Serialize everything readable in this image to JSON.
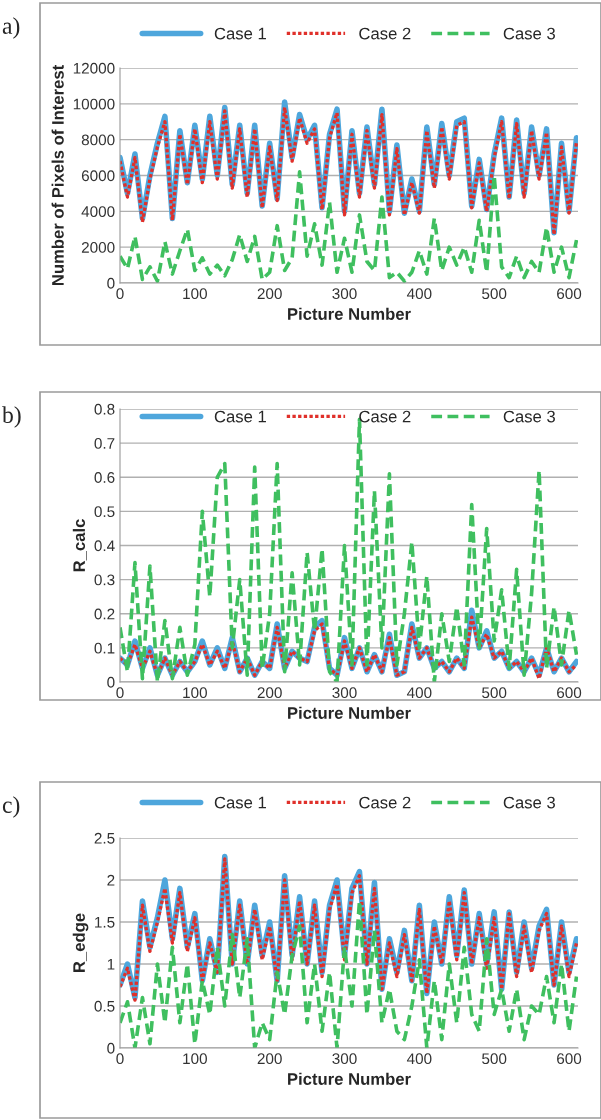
{
  "chart_data": [
    {
      "type": "line",
      "annotations": [
        "a)"
      ],
      "xlabel": "Picture Number",
      "ylabel": "Number of Pixels of Interest",
      "x": [
        0,
        10,
        20,
        30,
        40,
        50,
        60,
        70,
        80,
        90,
        100,
        110,
        120,
        130,
        140,
        150,
        160,
        170,
        180,
        190,
        200,
        210,
        220,
        230,
        240,
        250,
        260,
        270,
        280,
        290,
        300,
        310,
        320,
        330,
        340,
        350,
        360,
        370,
        380,
        390,
        400,
        410,
        420,
        430,
        440,
        450,
        460,
        470,
        480,
        490,
        500,
        510,
        520,
        530,
        540,
        550,
        560,
        570,
        580,
        590,
        600,
        610
      ],
      "xlim": [
        0,
        612
      ],
      "xticks": [
        0,
        100,
        200,
        300,
        400,
        500,
        600
      ],
      "ylim": [
        0,
        12000
      ],
      "yticks": [
        0,
        2000,
        4000,
        6000,
        8000,
        10000,
        12000
      ],
      "grid": "y",
      "legend": "top",
      "marker": "none",
      "series": [
        {
          "name": "Case 1",
          "color": "#4ea6dc",
          "line_style": "solid",
          "values": [
            7000,
            5000,
            7200,
            3600,
            6000,
            7800,
            9300,
            3600,
            8500,
            5600,
            8800,
            5800,
            9300,
            6000,
            9800,
            5500,
            8800,
            5000,
            8800,
            4300,
            7800,
            4700,
            10100,
            7000,
            9400,
            8000,
            8800,
            4200,
            8300,
            9700,
            4000,
            8500,
            5000,
            8700,
            5500,
            9700,
            4000,
            7700,
            3900,
            5800,
            4000,
            8700,
            5500,
            8900,
            6000,
            9000,
            9200,
            4300,
            6900,
            4100,
            7200,
            9200,
            4800,
            9100,
            5000,
            8700,
            6000,
            8600,
            2800,
            7800,
            4000,
            8100
          ]
        },
        {
          "name": "Case 2",
          "color": "#e0302a",
          "line_style": "dotted",
          "values": [
            6800,
            4800,
            7000,
            3400,
            5800,
            7600,
            9000,
            3500,
            8300,
            5500,
            8600,
            5600,
            9000,
            5800,
            9600,
            5300,
            8600,
            4800,
            8600,
            4200,
            7600,
            4600,
            9800,
            6800,
            9200,
            7800,
            8600,
            4100,
            8100,
            9500,
            3800,
            8300,
            4800,
            8500,
            5300,
            9400,
            3800,
            7500,
            3800,
            5600,
            3900,
            8500,
            5300,
            8700,
            5800,
            8800,
            9000,
            4200,
            6700,
            4000,
            7000,
            9000,
            4700,
            8900,
            4800,
            8500,
            5800,
            8400,
            2700,
            7600,
            3900,
            7900
          ]
        },
        {
          "name": "Case 3",
          "color": "#3fbf5f",
          "line_style": "dashed",
          "values": [
            1500,
            800,
            2600,
            200,
            900,
            100,
            2300,
            500,
            1800,
            3000,
            700,
            1400,
            500,
            1000,
            400,
            1300,
            2700,
            1200,
            2600,
            200,
            600,
            3200,
            700,
            1400,
            6200,
            1500,
            3300,
            1000,
            4500,
            600,
            2500,
            600,
            3800,
            1200,
            700,
            4800,
            300,
            600,
            100,
            600,
            1800,
            500,
            3600,
            700,
            2000,
            1000,
            2000,
            600,
            3500,
            600,
            6000,
            900,
            300,
            1500,
            300,
            1200,
            600,
            3100,
            600,
            2000,
            300,
            2400
          ]
        }
      ]
    },
    {
      "type": "line",
      "annotations": [
        "b)"
      ],
      "xlabel": "Picture Number",
      "ylabel": "R_calc",
      "x": [
        0,
        10,
        20,
        30,
        40,
        50,
        60,
        70,
        80,
        90,
        100,
        110,
        120,
        130,
        140,
        150,
        160,
        170,
        180,
        190,
        200,
        210,
        220,
        230,
        240,
        250,
        260,
        270,
        280,
        290,
        300,
        310,
        320,
        330,
        340,
        350,
        360,
        370,
        380,
        390,
        400,
        410,
        420,
        430,
        440,
        450,
        460,
        470,
        480,
        490,
        500,
        510,
        520,
        530,
        540,
        550,
        560,
        570,
        580,
        590,
        600,
        610
      ],
      "xlim": [
        0,
        612
      ],
      "xticks": [
        0,
        100,
        200,
        300,
        400,
        500,
        600
      ],
      "ylim": [
        0,
        0.8
      ],
      "yticks": [
        0,
        0.1,
        0.2,
        0.3,
        0.4,
        0.5,
        0.6,
        0.7,
        0.8
      ],
      "grid": "y",
      "legend": "top",
      "marker": "none",
      "series": [
        {
          "name": "Case 1",
          "color": "#4ea6dc",
          "line_style": "solid",
          "values": [
            0.07,
            0.05,
            0.12,
            0.04,
            0.1,
            0.02,
            0.07,
            0.02,
            0.06,
            0.03,
            0.06,
            0.12,
            0.05,
            0.1,
            0.04,
            0.13,
            0.03,
            0.07,
            0.02,
            0.06,
            0.04,
            0.17,
            0.04,
            0.09,
            0.07,
            0.06,
            0.16,
            0.18,
            0.04,
            0.02,
            0.13,
            0.04,
            0.1,
            0.03,
            0.08,
            0.03,
            0.14,
            0.02,
            0.03,
            0.17,
            0.07,
            0.1,
            0.04,
            0.06,
            0.03,
            0.07,
            0.04,
            0.21,
            0.1,
            0.15,
            0.07,
            0.09,
            0.04,
            0.06,
            0.03,
            0.07,
            0.02,
            0.1,
            0.03,
            0.07,
            0.03,
            0.06
          ]
        },
        {
          "name": "Case 2",
          "color": "#e0302a",
          "line_style": "dotted",
          "values": [
            0.07,
            0.05,
            0.11,
            0.04,
            0.09,
            0.02,
            0.07,
            0.02,
            0.06,
            0.03,
            0.06,
            0.11,
            0.05,
            0.09,
            0.04,
            0.12,
            0.03,
            0.07,
            0.02,
            0.06,
            0.04,
            0.16,
            0.04,
            0.09,
            0.07,
            0.06,
            0.15,
            0.17,
            0.04,
            0.02,
            0.12,
            0.04,
            0.1,
            0.03,
            0.08,
            0.03,
            0.13,
            0.02,
            0.03,
            0.16,
            0.07,
            0.1,
            0.04,
            0.06,
            0.03,
            0.07,
            0.04,
            0.19,
            0.1,
            0.14,
            0.07,
            0.09,
            0.04,
            0.06,
            0.03,
            0.07,
            0.01,
            0.1,
            0.03,
            0.07,
            0.03,
            0.05
          ]
        },
        {
          "name": "Case 3",
          "color": "#3fbf5f",
          "line_style": "dashed",
          "values": [
            0.16,
            0.03,
            0.35,
            0.01,
            0.34,
            0.0,
            0.18,
            0.01,
            0.16,
            0.02,
            0.11,
            0.5,
            0.25,
            0.6,
            0.64,
            0.1,
            0.3,
            0.02,
            0.63,
            0.04,
            0.2,
            0.64,
            0.03,
            0.32,
            0.05,
            0.38,
            0.15,
            0.39,
            0.03,
            0.0,
            0.4,
            0.05,
            0.77,
            0.05,
            0.56,
            0.1,
            0.61,
            0.05,
            0.2,
            0.41,
            0.1,
            0.31,
            0.0,
            0.2,
            0.06,
            0.22,
            0.05,
            0.52,
            0.1,
            0.45,
            0.12,
            0.27,
            0.04,
            0.33,
            0.02,
            0.26,
            0.62,
            0.04,
            0.22,
            0.05,
            0.21,
            0.08
          ]
        }
      ]
    },
    {
      "type": "line",
      "annotations": [
        "c)"
      ],
      "xlabel": "Picture Number",
      "ylabel": "R_edge",
      "x": [
        0,
        10,
        20,
        30,
        40,
        50,
        60,
        70,
        80,
        90,
        100,
        110,
        120,
        130,
        140,
        150,
        160,
        170,
        180,
        190,
        200,
        210,
        220,
        230,
        240,
        250,
        260,
        270,
        280,
        290,
        300,
        310,
        320,
        330,
        340,
        350,
        360,
        370,
        380,
        390,
        400,
        410,
        420,
        430,
        440,
        450,
        460,
        470,
        480,
        490,
        500,
        510,
        520,
        530,
        540,
        550,
        560,
        570,
        580,
        590,
        600,
        610
      ],
      "xlim": [
        0,
        612
      ],
      "xticks": [
        0,
        100,
        200,
        300,
        400,
        500,
        600
      ],
      "ylim": [
        0,
        2.5
      ],
      "yticks": [
        0,
        0.5,
        1,
        1.5,
        2,
        2.5
      ],
      "grid": "y",
      "legend": "top",
      "marker": "none",
      "series": [
        {
          "name": "Case 1",
          "color": "#4ea6dc",
          "line_style": "solid",
          "values": [
            0.75,
            1.0,
            0.6,
            1.75,
            1.2,
            1.55,
            2.0,
            1.3,
            1.9,
            1.2,
            1.6,
            0.8,
            1.3,
            0.9,
            2.28,
            1.0,
            1.75,
            1.0,
            1.7,
            1.1,
            1.5,
            0.8,
            2.05,
            1.1,
            1.8,
            1.0,
            1.75,
            0.9,
            1.7,
            2.0,
            1.1,
            1.9,
            2.1,
            1.0,
            1.97,
            0.7,
            1.3,
            0.9,
            1.4,
            0.8,
            1.7,
            0.65,
            1.5,
            1.0,
            1.8,
            1.1,
            1.88,
            1.0,
            1.6,
            1.0,
            1.62,
            0.7,
            1.62,
            0.9,
            1.5,
            0.95,
            1.45,
            1.65,
            0.75,
            1.5,
            0.9,
            1.3
          ]
        },
        {
          "name": "Case 2",
          "color": "#e0302a",
          "line_style": "dotted",
          "values": [
            0.73,
            0.95,
            0.57,
            1.7,
            1.15,
            1.5,
            1.9,
            1.25,
            1.85,
            1.15,
            1.55,
            0.8,
            1.25,
            0.9,
            2.25,
            1.0,
            1.7,
            1.0,
            1.65,
            1.05,
            1.45,
            0.8,
            2.0,
            1.05,
            1.75,
            1.0,
            1.7,
            0.85,
            1.65,
            1.95,
            1.05,
            1.85,
            2.05,
            1.0,
            1.9,
            0.7,
            1.25,
            0.85,
            1.35,
            0.8,
            1.65,
            0.65,
            1.45,
            1.0,
            1.75,
            1.05,
            1.85,
            1.0,
            1.55,
            0.95,
            1.55,
            0.7,
            1.6,
            0.85,
            1.45,
            0.9,
            1.4,
            1.6,
            0.75,
            1.45,
            0.85,
            1.25
          ]
        },
        {
          "name": "Case 3",
          "color": "#3fbf5f",
          "line_style": "dashed",
          "values": [
            0.3,
            0.55,
            0.0,
            0.6,
            0.05,
            1.0,
            0.3,
            1.2,
            0.3,
            1.0,
            0.05,
            0.8,
            0.4,
            1.2,
            0.5,
            1.35,
            0.6,
            1.3,
            0.0,
            0.3,
            0.1,
            0.9,
            0.4,
            1.1,
            1.45,
            0.3,
            1.0,
            0.2,
            0.9,
            0.0,
            1.2,
            0.5,
            1.75,
            0.4,
            1.4,
            0.3,
            0.7,
            0.2,
            0.1,
            0.5,
            1.05,
            0.0,
            0.8,
            0.1,
            1.0,
            0.3,
            1.2,
            0.4,
            0.2,
            1.3,
            0.4,
            0.7,
            0.2,
            0.7,
            0.1,
            0.5,
            0.4,
            0.85,
            0.3,
            1.0,
            0.2,
            0.85
          ]
        }
      ]
    }
  ]
}
